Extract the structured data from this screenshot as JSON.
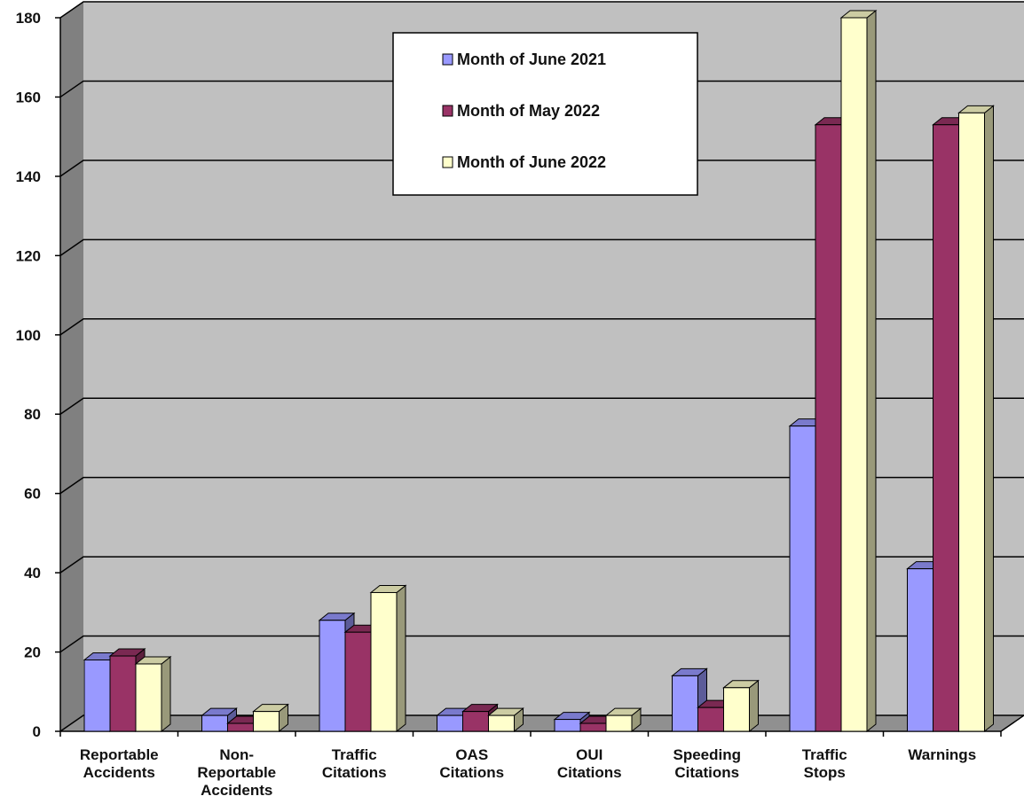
{
  "chart_data": {
    "type": "bar",
    "title": "",
    "xlabel": "",
    "ylabel": "",
    "ylim": [
      0,
      180
    ],
    "yticks": [
      0,
      20,
      40,
      60,
      80,
      100,
      120,
      140,
      160,
      180
    ],
    "grid": true,
    "legend_position": "top-center",
    "categories": [
      [
        "Reportable",
        "Accidents"
      ],
      [
        "Non-",
        "Reportable",
        "Accidents"
      ],
      [
        "Traffic",
        "Citations"
      ],
      [
        "OAS",
        "Citations"
      ],
      [
        "OUI",
        "Citations"
      ],
      [
        "Speeding",
        "Citations"
      ],
      [
        "Traffic",
        "Stops"
      ],
      [
        "Warnings"
      ]
    ],
    "series": [
      {
        "name": "Month of June 2021",
        "color": "#9999ff",
        "values": [
          18,
          4,
          28,
          4,
          3,
          14,
          77,
          41
        ]
      },
      {
        "name": "Month of May 2022",
        "color": "#993366",
        "values": [
          19,
          2,
          25,
          5,
          2,
          6,
          153,
          153
        ]
      },
      {
        "name": "Month of June 2022",
        "color": "#ffffcc",
        "values": [
          17,
          5,
          35,
          4,
          4,
          11,
          180,
          156
        ]
      }
    ]
  }
}
